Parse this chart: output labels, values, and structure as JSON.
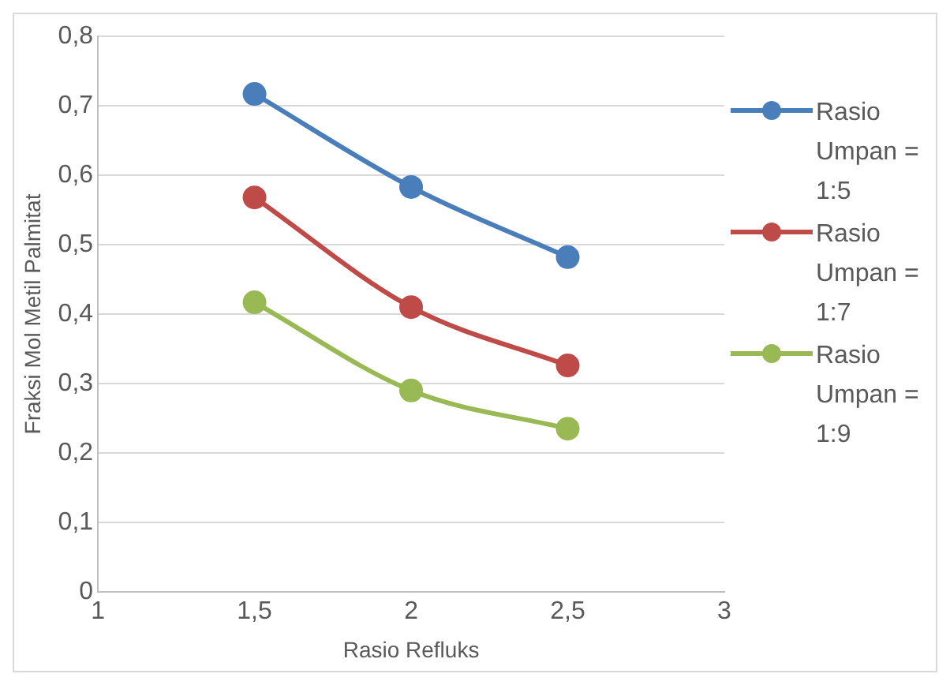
{
  "chart_data": {
    "type": "line",
    "xlabel": "Rasio Refluks",
    "ylabel": "Fraksi Mol Metil Palmitat",
    "x": [
      1.5,
      2,
      2.5
    ],
    "series": [
      {
        "name": "Rasio Umpan = 1:5",
        "color": "#4a7ebb",
        "values": [
          0.717,
          0.583,
          0.482
        ]
      },
      {
        "name": "Rasio Umpan = 1:7",
        "color": "#be4b48",
        "values": [
          0.568,
          0.41,
          0.326
        ]
      },
      {
        "name": "Rasio Umpan = 1:9",
        "color": "#98b954",
        "values": [
          0.417,
          0.29,
          0.235
        ]
      }
    ],
    "xlim": [
      1,
      3
    ],
    "xticks": [
      1,
      {
        "value": 1.5,
        "label": "1,5"
      },
      2,
      {
        "value": 2.5,
        "label": "2,5"
      },
      3
    ],
    "ylim": [
      0,
      0.8
    ],
    "yticks": [
      0,
      {
        "value": 0.1,
        "label": "0,1"
      },
      {
        "value": 0.2,
        "label": "0,2"
      },
      {
        "value": 0.3,
        "label": "0,3"
      },
      {
        "value": 0.4,
        "label": "0,4"
      },
      {
        "value": 0.5,
        "label": "0,5"
      },
      {
        "value": 0.6,
        "label": "0,6"
      },
      {
        "value": 0.7,
        "label": "0,7"
      },
      {
        "value": 0.8,
        "label": "0,8"
      }
    ],
    "grid": "y",
    "legend": "right",
    "marker": "circle",
    "line_style": "solid"
  }
}
